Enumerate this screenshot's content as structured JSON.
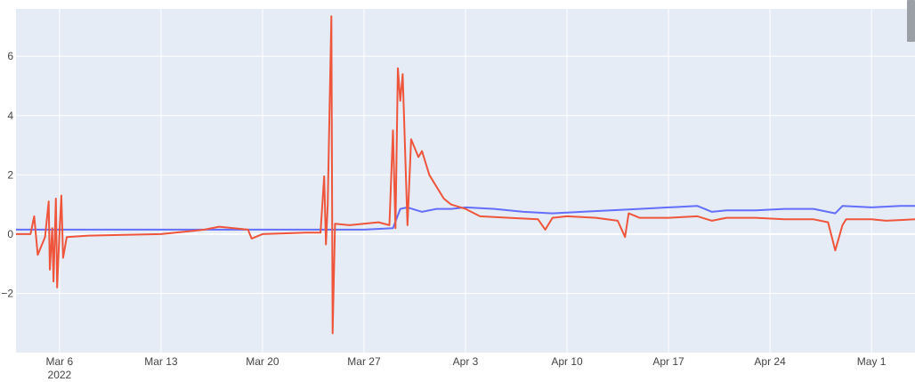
{
  "chart_data": {
    "type": "line",
    "title": "",
    "xlabel": "",
    "ylabel": "",
    "xlim": [
      "2022-03-03",
      "2022-05-04"
    ],
    "ylim": [
      -4,
      7.6
    ],
    "y_ticks": [
      -2,
      0,
      2,
      4,
      6
    ],
    "y_tick_labels": [
      "−2",
      "0",
      "2",
      "4",
      "6"
    ],
    "x_ticks": [
      "2022-03-06",
      "2022-03-13",
      "2022-03-20",
      "2022-03-27",
      "2022-04-03",
      "2022-04-10",
      "2022-04-17",
      "2022-04-24",
      "2022-05-01"
    ],
    "x_tick_labels": [
      "Mar 6",
      "Mar 13",
      "Mar 20",
      "Mar 27",
      "Apr 3",
      "Apr 10",
      "Apr 17",
      "Apr 24",
      "May 1"
    ],
    "x_year_label": "2022",
    "grid": true,
    "legend": "none",
    "colors": {
      "plot_bg": "#e5ecf6",
      "grid": "#ffffff",
      "series_1": "#636efa",
      "series_2": "#ef553b"
    },
    "series": [
      {
        "color": "#636efa",
        "points": [
          [
            "2022-03-03",
            0.15
          ],
          [
            "2022-03-10",
            0.15
          ],
          [
            "2022-03-17",
            0.15
          ],
          [
            "2022-03-24",
            0.15
          ],
          [
            "2022-03-27",
            0.15
          ],
          [
            "2022-03-29",
            0.2
          ],
          [
            "2022-03-29 12:00",
            0.85
          ],
          [
            "2022-03-30",
            0.9
          ],
          [
            "2022-03-31",
            0.75
          ],
          [
            "2022-04-01",
            0.85
          ],
          [
            "2022-04-02",
            0.85
          ],
          [
            "2022-04-03",
            0.9
          ],
          [
            "2022-04-05",
            0.85
          ],
          [
            "2022-04-07",
            0.75
          ],
          [
            "2022-04-09",
            0.7
          ],
          [
            "2022-04-11",
            0.75
          ],
          [
            "2022-04-13",
            0.8
          ],
          [
            "2022-04-15",
            0.85
          ],
          [
            "2022-04-17",
            0.9
          ],
          [
            "2022-04-19",
            0.95
          ],
          [
            "2022-04-20",
            0.75
          ],
          [
            "2022-04-21",
            0.8
          ],
          [
            "2022-04-23",
            0.8
          ],
          [
            "2022-04-25",
            0.85
          ],
          [
            "2022-04-27",
            0.85
          ],
          [
            "2022-04-28 12:00",
            0.7
          ],
          [
            "2022-04-29",
            0.95
          ],
          [
            "2022-05-01",
            0.9
          ],
          [
            "2022-05-03",
            0.95
          ],
          [
            "2022-05-04",
            0.95
          ]
        ]
      },
      {
        "color": "#ef553b",
        "points": [
          [
            "2022-03-03",
            0.0
          ],
          [
            "2022-03-04",
            0.0
          ],
          [
            "2022-03-04 06:00",
            0.6
          ],
          [
            "2022-03-04 12:00",
            -0.7
          ],
          [
            "2022-03-05",
            -0.1
          ],
          [
            "2022-03-05 06:00",
            1.1
          ],
          [
            "2022-03-05 08:00",
            -1.2
          ],
          [
            "2022-03-05 12:00",
            0.2
          ],
          [
            "2022-03-05 14:00",
            -1.6
          ],
          [
            "2022-03-05 18:00",
            1.2
          ],
          [
            "2022-03-05 20:00",
            -1.8
          ],
          [
            "2022-03-06",
            0.1
          ],
          [
            "2022-03-06 03:00",
            1.3
          ],
          [
            "2022-03-06 06:00",
            -0.8
          ],
          [
            "2022-03-06 12:00",
            -0.1
          ],
          [
            "2022-03-08",
            -0.05
          ],
          [
            "2022-03-13",
            0.0
          ],
          [
            "2022-03-15",
            0.1
          ],
          [
            "2022-03-16",
            0.15
          ],
          [
            "2022-03-17",
            0.25
          ],
          [
            "2022-03-18",
            0.2
          ],
          [
            "2022-03-19",
            0.15
          ],
          [
            "2022-03-19 06:00",
            -0.15
          ],
          [
            "2022-03-20",
            0.0
          ],
          [
            "2022-03-23",
            0.05
          ],
          [
            "2022-03-24",
            0.05
          ],
          [
            "2022-03-24 06:00",
            1.95
          ],
          [
            "2022-03-24 09:00",
            -0.35
          ],
          [
            "2022-03-24 12:00",
            1.0
          ],
          [
            "2022-03-24 18:00",
            7.35
          ],
          [
            "2022-03-24 20:00",
            -3.35
          ],
          [
            "2022-03-25",
            0.35
          ],
          [
            "2022-03-26",
            0.3
          ],
          [
            "2022-03-27",
            0.35
          ],
          [
            "2022-03-28",
            0.4
          ],
          [
            "2022-03-28 18:00",
            0.3
          ],
          [
            "2022-03-29",
            3.5
          ],
          [
            "2022-03-29 04:00",
            0.2
          ],
          [
            "2022-03-29 08:00",
            5.6
          ],
          [
            "2022-03-29 12:00",
            4.5
          ],
          [
            "2022-03-29 16:00",
            5.4
          ],
          [
            "2022-03-30",
            0.3
          ],
          [
            "2022-03-30 06:00",
            3.2
          ],
          [
            "2022-03-30 18:00",
            2.6
          ],
          [
            "2022-03-31",
            2.8
          ],
          [
            "2022-03-31 12:00",
            2.0
          ],
          [
            "2022-04-01",
            1.6
          ],
          [
            "2022-04-01 12:00",
            1.2
          ],
          [
            "2022-04-02",
            1.0
          ],
          [
            "2022-04-03",
            0.85
          ],
          [
            "2022-04-04",
            0.6
          ],
          [
            "2022-04-06",
            0.55
          ],
          [
            "2022-04-08",
            0.5
          ],
          [
            "2022-04-08 12:00",
            0.15
          ],
          [
            "2022-04-09",
            0.55
          ],
          [
            "2022-04-10",
            0.6
          ],
          [
            "2022-04-12",
            0.55
          ],
          [
            "2022-04-13 12:00",
            0.45
          ],
          [
            "2022-04-14",
            -0.1
          ],
          [
            "2022-04-14 06:00",
            0.7
          ],
          [
            "2022-04-15",
            0.55
          ],
          [
            "2022-04-17",
            0.55
          ],
          [
            "2022-04-19",
            0.6
          ],
          [
            "2022-04-20",
            0.45
          ],
          [
            "2022-04-21",
            0.55
          ],
          [
            "2022-04-23",
            0.55
          ],
          [
            "2022-04-25",
            0.5
          ],
          [
            "2022-04-27",
            0.5
          ],
          [
            "2022-04-28",
            0.4
          ],
          [
            "2022-04-28 12:00",
            -0.55
          ],
          [
            "2022-04-29",
            0.3
          ],
          [
            "2022-04-29 06:00",
            0.5
          ],
          [
            "2022-05-01",
            0.5
          ],
          [
            "2022-05-02",
            0.45
          ],
          [
            "2022-05-04",
            0.5
          ]
        ]
      }
    ]
  }
}
